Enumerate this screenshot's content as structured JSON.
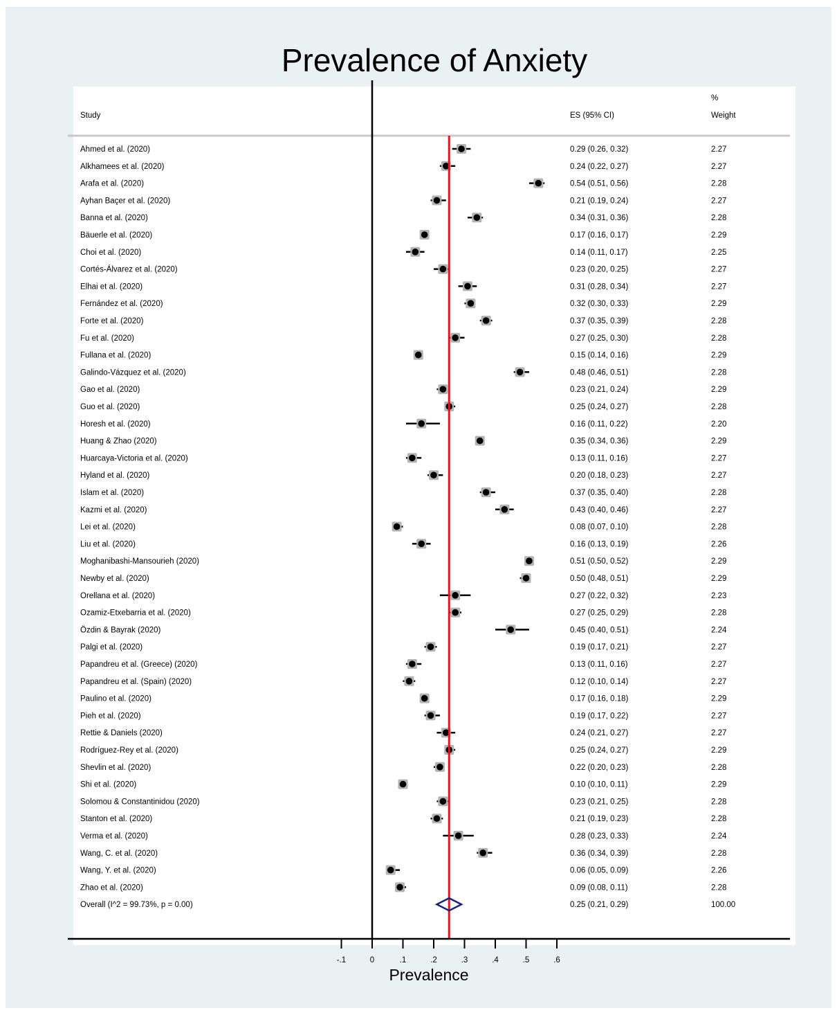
{
  "chart_data": {
    "type": "forest",
    "title": "Prevalence of Anxiety",
    "xlabel": "Prevalence",
    "xlim": [
      -0.1,
      0.6
    ],
    "xticks": [
      -0.1,
      0,
      0.1,
      0.2,
      0.3,
      0.4,
      0.5,
      0.6
    ],
    "xtick_labels": [
      "-.1",
      "0",
      ".1",
      ".2",
      ".3",
      ".4",
      ".5",
      ".6"
    ],
    "null_line": 0,
    "overall_line": 0.25,
    "columns": {
      "study": "Study",
      "es": "ES (95% CI)",
      "weight_top": "%",
      "weight": "Weight"
    },
    "studies": [
      {
        "name": "Ahmed et al. (2020)",
        "es": 0.29,
        "lo": 0.26,
        "hi": 0.32,
        "label": "0.29 (0.26, 0.32)",
        "weight": "2.27"
      },
      {
        "name": "Alkhamees et al. (2020)",
        "es": 0.24,
        "lo": 0.22,
        "hi": 0.27,
        "label": "0.24 (0.22, 0.27)",
        "weight": "2.27"
      },
      {
        "name": "Arafa et al. (2020)",
        "es": 0.54,
        "lo": 0.51,
        "hi": 0.56,
        "label": "0.54 (0.51, 0.56)",
        "weight": "2.28"
      },
      {
        "name": "Ayhan Baçer et al.  (2020)",
        "es": 0.21,
        "lo": 0.19,
        "hi": 0.24,
        "label": "0.21 (0.19, 0.24)",
        "weight": "2.27"
      },
      {
        "name": "Banna et al. (2020)",
        "es": 0.34,
        "lo": 0.31,
        "hi": 0.36,
        "label": "0.34 (0.31, 0.36)",
        "weight": "2.28"
      },
      {
        "name": "Bäuerle et al. (2020)",
        "es": 0.17,
        "lo": 0.16,
        "hi": 0.17,
        "label": "0.17 (0.16, 0.17)",
        "weight": "2.29"
      },
      {
        "name": "Choi et al. (2020)",
        "es": 0.14,
        "lo": 0.11,
        "hi": 0.17,
        "label": "0.14 (0.11, 0.17)",
        "weight": "2.25"
      },
      {
        "name": "Cortés-Álvarez et al. (2020)",
        "es": 0.23,
        "lo": 0.2,
        "hi": 0.25,
        "label": "0.23 (0.20, 0.25)",
        "weight": "2.27"
      },
      {
        "name": "Elhai et al. (2020)",
        "es": 0.31,
        "lo": 0.28,
        "hi": 0.34,
        "label": "0.31 (0.28, 0.34)",
        "weight": "2.27"
      },
      {
        "name": "Fernández et al. (2020)",
        "es": 0.32,
        "lo": 0.3,
        "hi": 0.33,
        "label": "0.32 (0.30, 0.33)",
        "weight": "2.29"
      },
      {
        "name": "Forte et al. (2020)",
        "es": 0.37,
        "lo": 0.35,
        "hi": 0.39,
        "label": "0.37 (0.35, 0.39)",
        "weight": "2.28"
      },
      {
        "name": "Fu et al. (2020)",
        "es": 0.27,
        "lo": 0.25,
        "hi": 0.3,
        "label": "0.27 (0.25, 0.30)",
        "weight": "2.28"
      },
      {
        "name": "Fullana et al. (2020)",
        "es": 0.15,
        "lo": 0.14,
        "hi": 0.16,
        "label": "0.15 (0.14, 0.16)",
        "weight": "2.29"
      },
      {
        "name": "Galindo-Vázquez et al. (2020)",
        "es": 0.48,
        "lo": 0.46,
        "hi": 0.51,
        "label": "0.48 (0.46, 0.51)",
        "weight": "2.28"
      },
      {
        "name": "Gao et al. (2020)",
        "es": 0.23,
        "lo": 0.21,
        "hi": 0.24,
        "label": "0.23 (0.21, 0.24)",
        "weight": "2.29"
      },
      {
        "name": "Guo et al. (2020)",
        "es": 0.25,
        "lo": 0.24,
        "hi": 0.27,
        "label": "0.25 (0.24, 0.27)",
        "weight": "2.28"
      },
      {
        "name": "Horesh et al. (2020)",
        "es": 0.16,
        "lo": 0.11,
        "hi": 0.22,
        "label": "0.16 (0.11, 0.22)",
        "weight": "2.20"
      },
      {
        "name": "Huang & Zhao (2020)",
        "es": 0.35,
        "lo": 0.34,
        "hi": 0.36,
        "label": "0.35 (0.34, 0.36)",
        "weight": "2.29"
      },
      {
        "name": "Huarcaya-Victoria et al. (2020)",
        "es": 0.13,
        "lo": 0.11,
        "hi": 0.16,
        "label": "0.13 (0.11, 0.16)",
        "weight": "2.27"
      },
      {
        "name": "Hyland et al. (2020)",
        "es": 0.2,
        "lo": 0.18,
        "hi": 0.23,
        "label": "0.20 (0.18, 0.23)",
        "weight": "2.27"
      },
      {
        "name": "Islam et al. (2020)",
        "es": 0.37,
        "lo": 0.35,
        "hi": 0.4,
        "label": "0.37 (0.35, 0.40)",
        "weight": "2.28"
      },
      {
        "name": "Kazmi et al. (2020)",
        "es": 0.43,
        "lo": 0.4,
        "hi": 0.46,
        "label": "0.43 (0.40, 0.46)",
        "weight": "2.27"
      },
      {
        "name": "Lei et al. (2020)",
        "es": 0.08,
        "lo": 0.07,
        "hi": 0.1,
        "label": "0.08 (0.07, 0.10)",
        "weight": "2.28"
      },
      {
        "name": "Liu et al. (2020)",
        "es": 0.16,
        "lo": 0.13,
        "hi": 0.19,
        "label": "0.16 (0.13, 0.19)",
        "weight": "2.26"
      },
      {
        "name": "Moghanibashi-Mansourieh (2020)",
        "es": 0.51,
        "lo": 0.5,
        "hi": 0.52,
        "label": "0.51 (0.50, 0.52)",
        "weight": "2.29"
      },
      {
        "name": "Newby et al. (2020)",
        "es": 0.5,
        "lo": 0.48,
        "hi": 0.51,
        "label": "0.50 (0.48, 0.51)",
        "weight": "2.29"
      },
      {
        "name": "Orellana et al. (2020)",
        "es": 0.27,
        "lo": 0.22,
        "hi": 0.32,
        "label": "0.27 (0.22, 0.32)",
        "weight": "2.23"
      },
      {
        "name": "Ozamiz-Etxebarria et al. (2020)",
        "es": 0.27,
        "lo": 0.25,
        "hi": 0.29,
        "label": "0.27 (0.25, 0.29)",
        "weight": "2.28"
      },
      {
        "name": "Özdin & Bayrak (2020)",
        "es": 0.45,
        "lo": 0.4,
        "hi": 0.51,
        "label": "0.45 (0.40, 0.51)",
        "weight": "2.24"
      },
      {
        "name": "Palgi et al. (2020)",
        "es": 0.19,
        "lo": 0.17,
        "hi": 0.21,
        "label": "0.19 (0.17, 0.21)",
        "weight": "2.27"
      },
      {
        "name": "Papandreu et al. (Greece) (2020)",
        "es": 0.13,
        "lo": 0.11,
        "hi": 0.16,
        "label": "0.13 (0.11, 0.16)",
        "weight": "2.27"
      },
      {
        "name": "Papandreu et al. (Spain) (2020)",
        "es": 0.12,
        "lo": 0.1,
        "hi": 0.14,
        "label": "0.12 (0.10, 0.14)",
        "weight": "2.27"
      },
      {
        "name": "Paulino et al. (2020)",
        "es": 0.17,
        "lo": 0.16,
        "hi": 0.18,
        "label": "0.17 (0.16, 0.18)",
        "weight": "2.29"
      },
      {
        "name": "Pieh et al. (2020)",
        "es": 0.19,
        "lo": 0.17,
        "hi": 0.22,
        "label": "0.19 (0.17, 0.22)",
        "weight": "2.27"
      },
      {
        "name": "Rettie & Daniels (2020)",
        "es": 0.24,
        "lo": 0.21,
        "hi": 0.27,
        "label": "0.24 (0.21, 0.27)",
        "weight": "2.27"
      },
      {
        "name": "Rodríguez-Rey et al. (2020)",
        "es": 0.25,
        "lo": 0.24,
        "hi": 0.27,
        "label": "0.25 (0.24, 0.27)",
        "weight": "2.29"
      },
      {
        "name": "Shevlin et al. (2020)",
        "es": 0.22,
        "lo": 0.2,
        "hi": 0.23,
        "label": "0.22 (0.20, 0.23)",
        "weight": "2.28"
      },
      {
        "name": "Shi et al. (2020)",
        "es": 0.1,
        "lo": 0.1,
        "hi": 0.11,
        "label": "0.10 (0.10, 0.11)",
        "weight": "2.29"
      },
      {
        "name": "Solomou & Constantinidou (2020)",
        "es": 0.23,
        "lo": 0.21,
        "hi": 0.25,
        "label": "0.23 (0.21, 0.25)",
        "weight": "2.28"
      },
      {
        "name": "Stanton et al. (2020)",
        "es": 0.21,
        "lo": 0.19,
        "hi": 0.23,
        "label": "0.21 (0.19, 0.23)",
        "weight": "2.28"
      },
      {
        "name": "Verma et al. (2020)",
        "es": 0.28,
        "lo": 0.23,
        "hi": 0.33,
        "label": "0.28 (0.23, 0.33)",
        "weight": "2.24"
      },
      {
        "name": "Wang, C. et al. (2020)",
        "es": 0.36,
        "lo": 0.34,
        "hi": 0.39,
        "label": "0.36 (0.34, 0.39)",
        "weight": "2.28"
      },
      {
        "name": "Wang, Y. et al. (2020)",
        "es": 0.06,
        "lo": 0.05,
        "hi": 0.09,
        "label": "0.06 (0.05, 0.09)",
        "weight": "2.26"
      },
      {
        "name": "Zhao et al. (2020)",
        "es": 0.09,
        "lo": 0.08,
        "hi": 0.11,
        "label": "0.09 (0.08, 0.11)",
        "weight": "2.28"
      }
    ],
    "overall": {
      "name": "Overall  (I^2 = 99.73%, p = 0.00)",
      "es": 0.25,
      "lo": 0.21,
      "hi": 0.29,
      "label": "0.25 (0.21, 0.29)",
      "weight": "100.00"
    },
    "colors": {
      "background": "#eaf1f3",
      "panel": "#ffffff",
      "point": "#000000",
      "box": "#b3b3b3",
      "overall_line": "#e8141b",
      "diamond": "#1a237e"
    }
  }
}
